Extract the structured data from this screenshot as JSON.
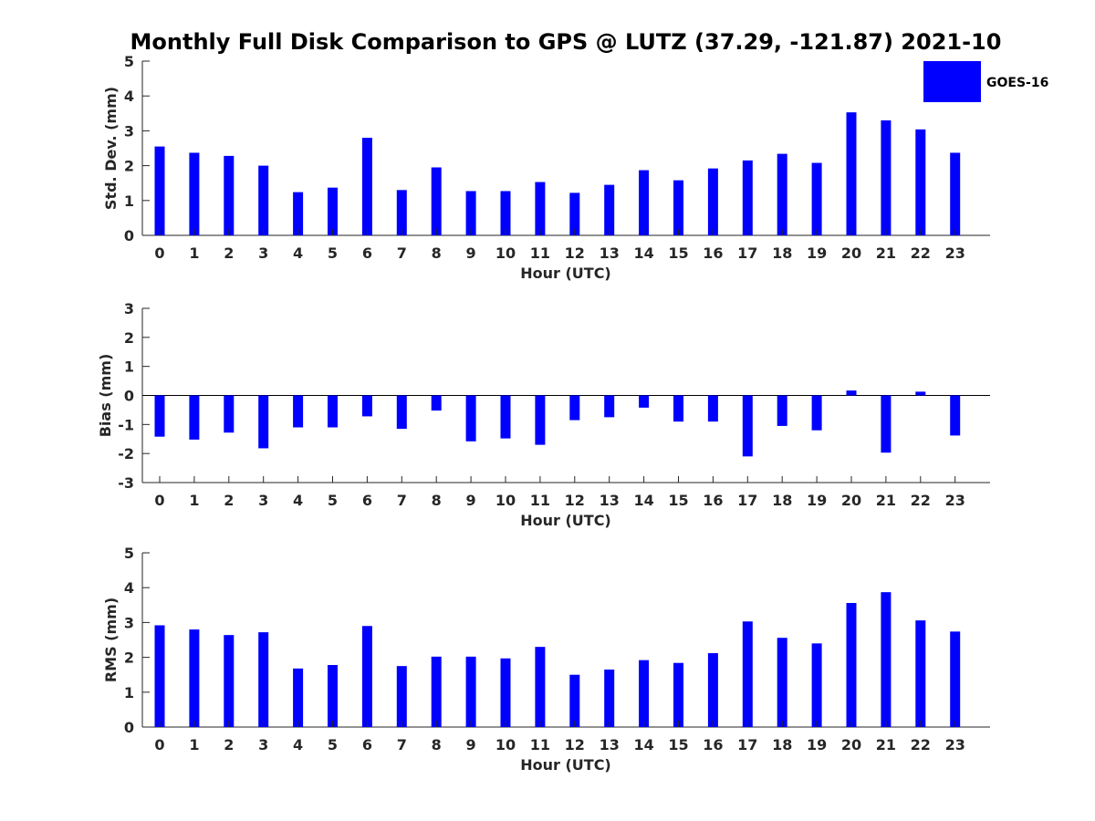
{
  "title": "Monthly Full Disk Comparison to GPS @ LUTZ (37.29, -121.87) 2021-10",
  "legend": {
    "label": "GOES-16",
    "color": "#0000ff"
  },
  "chart_data": [
    {
      "type": "bar",
      "series_name": "GOES-16",
      "color": "#0000ff",
      "xlabel": "Hour (UTC)",
      "ylabel": "Std. Dev. (mm)",
      "ylim": [
        0,
        5
      ],
      "yticks": [
        "0",
        "1",
        "2",
        "3",
        "4",
        "5"
      ],
      "categories": [
        "0",
        "1",
        "2",
        "3",
        "4",
        "5",
        "6",
        "7",
        "8",
        "9",
        "10",
        "11",
        "12",
        "13",
        "14",
        "15",
        "16",
        "17",
        "18",
        "19",
        "20",
        "21",
        "22",
        "23"
      ],
      "values": [
        2.55,
        2.37,
        2.28,
        2.0,
        1.24,
        1.37,
        2.8,
        1.3,
        1.95,
        1.27,
        1.27,
        1.53,
        1.22,
        1.45,
        1.87,
        1.58,
        1.92,
        2.15,
        2.34,
        2.08,
        3.53,
        3.3,
        3.04,
        2.37
      ]
    },
    {
      "type": "bar",
      "series_name": "GOES-16",
      "color": "#0000ff",
      "xlabel": "Hour (UTC)",
      "ylabel": "Bias (mm)",
      "ylim": [
        -3,
        3
      ],
      "yticks": [
        "-3",
        "-2",
        "-1",
        "0",
        "1",
        "2",
        "3"
      ],
      "categories": [
        "0",
        "1",
        "2",
        "3",
        "4",
        "5",
        "6",
        "7",
        "8",
        "9",
        "10",
        "11",
        "12",
        "13",
        "14",
        "15",
        "16",
        "17",
        "18",
        "19",
        "20",
        "21",
        "22",
        "23"
      ],
      "values": [
        -1.42,
        -1.52,
        -1.28,
        -1.82,
        -1.1,
        -1.1,
        -0.72,
        -1.15,
        -0.52,
        -1.58,
        -1.48,
        -1.7,
        -0.85,
        -0.75,
        -0.42,
        -0.9,
        -0.9,
        -2.1,
        -1.05,
        -1.2,
        0.17,
        -1.97,
        0.13,
        -1.38
      ]
    },
    {
      "type": "bar",
      "series_name": "GOES-16",
      "color": "#0000ff",
      "xlabel": "Hour (UTC)",
      "ylabel": "RMS (mm)",
      "ylim": [
        0,
        5
      ],
      "yticks": [
        "0",
        "1",
        "2",
        "3",
        "4",
        "5"
      ],
      "categories": [
        "0",
        "1",
        "2",
        "3",
        "4",
        "5",
        "6",
        "7",
        "8",
        "9",
        "10",
        "11",
        "12",
        "13",
        "14",
        "15",
        "16",
        "17",
        "18",
        "19",
        "20",
        "21",
        "22",
        "23"
      ],
      "values": [
        2.92,
        2.8,
        2.64,
        2.72,
        1.68,
        1.78,
        2.9,
        1.75,
        2.02,
        2.02,
        1.97,
        2.3,
        1.5,
        1.65,
        1.92,
        1.84,
        2.12,
        3.03,
        2.56,
        2.4,
        3.56,
        3.87,
        3.06,
        2.74
      ]
    }
  ]
}
